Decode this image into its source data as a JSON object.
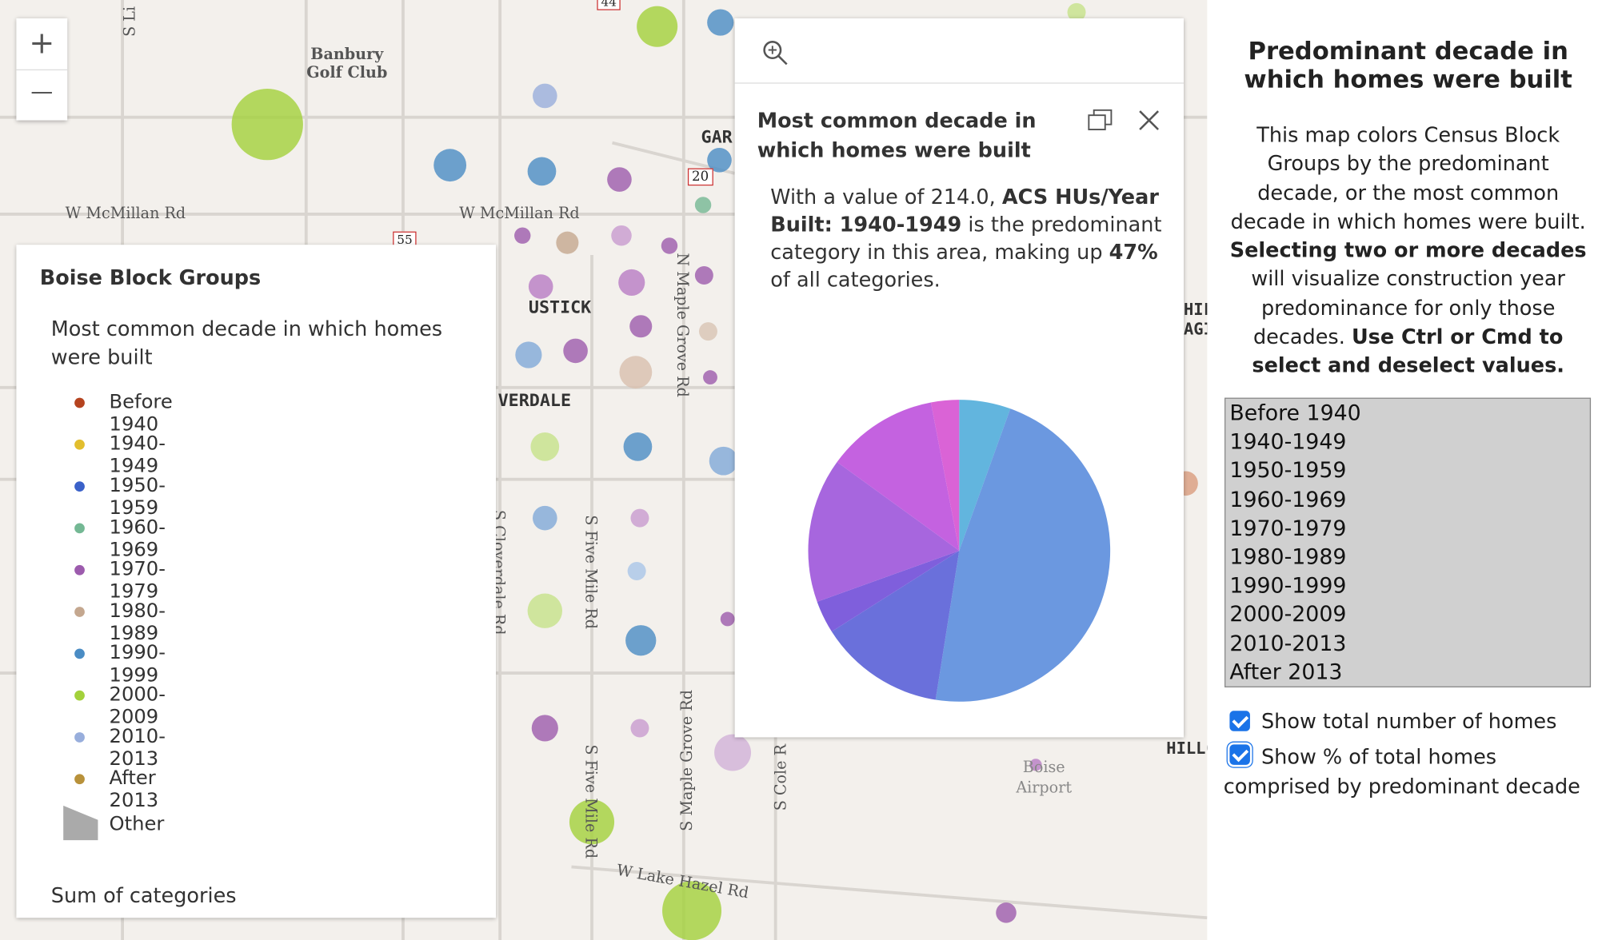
{
  "map_labels": {
    "s_lin": "S Li",
    "golf": "Banbury Golf Club",
    "mcmillan_1": "W McMillan Rd",
    "mcmillan_2": "W McMillan Rd",
    "gar": "GAR",
    "hwy_20": "20",
    "hwy_55": "55",
    "hwy_44": "44",
    "ustick": "USTICK",
    "verdale": "VERDALE",
    "n_maple": "N Maple Grove Rd",
    "s_five_1": "S Five Mile Rd",
    "s_five_2": "S Five Mile Rd",
    "s_maple": "S Maple Grove Rd",
    "s_cole": "S Cole R",
    "s_clover": "S Cloverdale Rd",
    "hillc": "HILLC",
    "hil": "HIL",
    "agi": "AGI",
    "airport": "Boise Airport",
    "lake_hazel": "W Lake Hazel Rd"
  },
  "zoom": {
    "in": "+",
    "out": "—"
  },
  "legend": {
    "title": "Boise Block Groups",
    "subtitle": "Most common decade in which homes were built",
    "items": [
      {
        "name": "Before 1940",
        "color": "#b5431f"
      },
      {
        "name": "1940-1949",
        "color": "#e2be2e"
      },
      {
        "name": "1950-1959",
        "color": "#3a61c9"
      },
      {
        "name": "1960-1969",
        "color": "#74b894"
      },
      {
        "name": "1970-1979",
        "color": "#9c5bad"
      },
      {
        "name": "1980-1989",
        "color": "#c4a78f"
      },
      {
        "name": "1990-1999",
        "color": "#4a8cc4"
      },
      {
        "name": "2000-2009",
        "color": "#a3d13b"
      },
      {
        "name": "2010-2013",
        "color": "#98aedc"
      },
      {
        "name": "After 2013",
        "color": "#b8913a"
      }
    ],
    "other": "Other",
    "sum": "Sum of categories"
  },
  "popup": {
    "title": "Most common decade in which homes were built",
    "text": [
      {
        "t": "With a value of 214.0, "
      },
      {
        "t": "ACS HUs/Year Built: 1940-1949",
        "b": true
      },
      {
        "t": " is the predominant category in this area, making up "
      },
      {
        "t": "47%",
        "b": true
      },
      {
        "t": " of all categories."
      }
    ],
    "chart_data": {
      "type": "pie",
      "values": [
        5.5,
        47,
        13.5,
        3.5,
        15.5,
        12,
        3
      ],
      "colors": [
        "#62b5de",
        "#6b98e0",
        "#6a70db",
        "#7f5fdc",
        "#a766de",
        "#c462e0",
        "#da63d6"
      ]
    }
  },
  "side": {
    "title": "Predominant decade in which homes were built",
    "description": [
      {
        "t": "This map colors Census Block Groups by the predominant decade, or the most common decade in which homes were built. "
      },
      {
        "t": "Selecting two or more decades",
        "b": true
      },
      {
        "t": " will visualize construction year predominance for only those decades. "
      },
      {
        "t": "Use Ctrl or Cmd to select and deselect values.",
        "b": true
      }
    ],
    "options": [
      "Before 1940",
      "1940-1949",
      "1950-1959",
      "1960-1969",
      "1970-1979",
      "1980-1989",
      "1990-1999",
      "2000-2009",
      "2010-2013",
      "After 2013"
    ],
    "checkboxes": [
      "Show total number of homes",
      "Show % of total homes comprised by predominant decade"
    ]
  }
}
